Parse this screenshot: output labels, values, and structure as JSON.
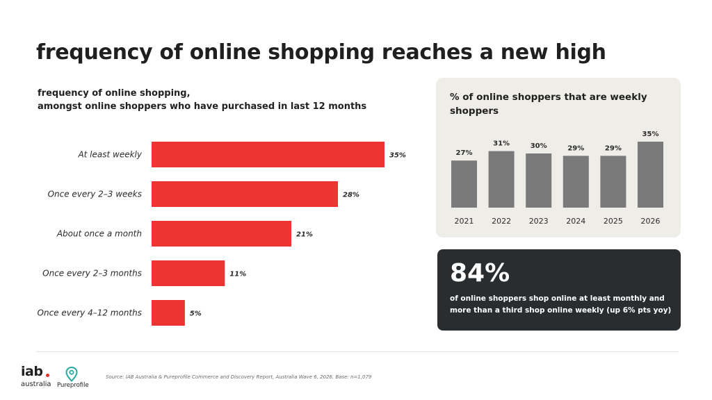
{
  "page": {
    "title": "frequency of online shopping reaches a new high",
    "source": "Source: IAB Australia & Pureprofile Commerce and Discovery Report,  Australia Wave 6, 2026. Base: n=1,079"
  },
  "colors": {
    "accent_red": "#ee3432",
    "bar_gray": "#7a7a7a",
    "panel_bg": "#efede8",
    "callout_bg": "#2a2d2f"
  },
  "callout": {
    "value": "84%",
    "text": "of online shoppers shop online at least monthly and more than a third shop online weekly  (up 6% pts yoy)"
  },
  "logos": {
    "iab_word": "iab",
    "iab_sub": "australia",
    "pureprofile_word": "Pureprofile",
    "pureprofile_icon": "location-pin-icon"
  },
  "chart_data": [
    {
      "type": "bar",
      "orientation": "horizontal",
      "title_lines": [
        "frequency of online shopping,",
        "amongst online shoppers who have purchased in last 12 months"
      ],
      "categories": [
        "At least weekly",
        "Once every 2–3 weeks",
        "About once a month",
        "Once every 2–3 months",
        "Once every 4–12 months"
      ],
      "values": [
        35,
        28,
        21,
        11,
        5
      ],
      "data_labels": [
        "35%",
        "28%",
        "21%",
        "11%",
        "5%"
      ],
      "unit": "%",
      "xlim": [
        0,
        35
      ],
      "grid": false,
      "color": "#ee3432"
    },
    {
      "type": "bar",
      "orientation": "vertical",
      "title": "% of online shoppers that are weekly shoppers",
      "categories": [
        "2021",
        "2022",
        "2023",
        "2024",
        "2025",
        "2026"
      ],
      "values": [
        27,
        31,
        30,
        29,
        29,
        35
      ],
      "data_labels": [
        "27%",
        "31%",
        "30%",
        "29%",
        "29%",
        "35%"
      ],
      "unit": "%",
      "ylim": [
        20,
        35
      ],
      "grid": false,
      "color": "#7a7a7a"
    }
  ]
}
